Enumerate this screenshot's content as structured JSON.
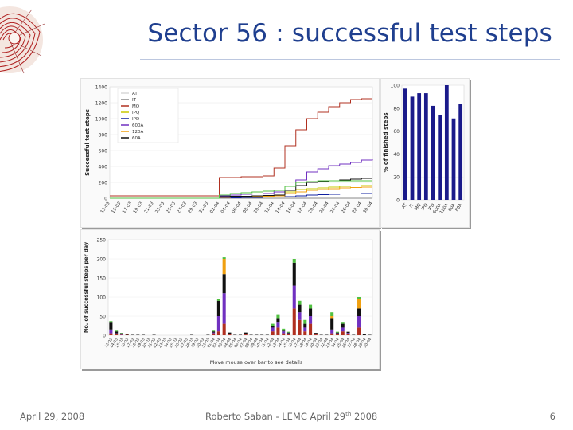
{
  "slide": {
    "title": "Sector 56 : successful test steps",
    "footer_date": "April 29, 2008",
    "footer_author_pre": "Roberto Saban - LEMC April 29",
    "footer_author_sup": "th",
    "footer_author_post": " 2008",
    "page_number": "6",
    "logo_icon": "cern-lhc-sector-logo-icon"
  },
  "chart_data": [
    {
      "type": "line",
      "ylabel": "Successful test steps",
      "ylim": [
        0,
        1400
      ],
      "yticks": [
        0,
        200,
        400,
        600,
        800,
        1000,
        1200,
        1400
      ],
      "categories": [
        "13-03",
        "15-03",
        "17-03",
        "19-03",
        "21-03",
        "23-03",
        "25-03",
        "27-03",
        "29-03",
        "31-03",
        "02-04",
        "04-04",
        "06-04",
        "08-04",
        "10-04",
        "12-04",
        "14-04",
        "16-04",
        "18-04",
        "20-04",
        "22-04",
        "24-04",
        "26-04",
        "28-04",
        "30-04"
      ],
      "legend": {
        "position": "top-left"
      },
      "series": [
        {
          "name": "AT",
          "color": "#d8d8d8",
          "values": [
            0,
            0,
            0,
            0,
            0,
            0,
            0,
            0,
            0,
            0,
            0,
            0,
            0,
            0,
            0,
            0,
            0,
            0,
            0,
            0,
            0,
            0,
            0,
            0,
            0
          ]
        },
        {
          "name": "IT",
          "color": "#888888",
          "values": [
            0,
            0,
            0,
            0,
            0,
            0,
            0,
            0,
            0,
            0,
            0,
            0,
            0,
            0,
            0,
            0,
            0,
            0,
            0,
            0,
            0,
            0,
            0,
            0,
            0
          ]
        },
        {
          "name": "MQ",
          "color": "#b03020",
          "values": [
            30,
            30,
            30,
            30,
            30,
            30,
            30,
            30,
            30,
            30,
            260,
            260,
            270,
            270,
            280,
            380,
            660,
            860,
            1000,
            1080,
            1150,
            1200,
            1240,
            1250,
            1250
          ]
        },
        {
          "name": "IPQ",
          "color": "#c8c800",
          "values": [
            0,
            0,
            0,
            0,
            0,
            0,
            0,
            0,
            0,
            0,
            10,
            15,
            20,
            20,
            25,
            30,
            80,
            110,
            120,
            130,
            140,
            150,
            155,
            160,
            160
          ]
        },
        {
          "name": "IPD",
          "color": "#1020a0",
          "values": [
            0,
            0,
            0,
            0,
            0,
            0,
            0,
            0,
            0,
            0,
            5,
            5,
            10,
            10,
            15,
            15,
            20,
            30,
            40,
            45,
            50,
            55,
            55,
            60,
            60
          ]
        },
        {
          "name": "600A",
          "color": "#7030c0",
          "values": [
            0,
            0,
            0,
            0,
            0,
            0,
            0,
            0,
            0,
            0,
            30,
            40,
            50,
            55,
            60,
            80,
            150,
            230,
            330,
            370,
            410,
            430,
            450,
            480,
            490
          ]
        },
        {
          "name": "120A",
          "color": "#f0a010",
          "values": [
            0,
            0,
            0,
            0,
            0,
            0,
            0,
            0,
            0,
            0,
            10,
            15,
            15,
            20,
            25,
            30,
            60,
            80,
            100,
            110,
            120,
            130,
            135,
            140,
            140
          ]
        },
        {
          "name": "60A",
          "color": "#101010",
          "values": [
            0,
            0,
            0,
            0,
            0,
            0,
            0,
            0,
            0,
            0,
            20,
            25,
            25,
            30,
            35,
            40,
            100,
            160,
            200,
            210,
            220,
            230,
            240,
            250,
            250
          ]
        },
        {
          "name": "",
          "color": "#50c040",
          "values": [
            0,
            0,
            0,
            0,
            0,
            0,
            0,
            0,
            0,
            0,
            40,
            60,
            70,
            80,
            90,
            100,
            150,
            200,
            210,
            220,
            220,
            220,
            220,
            220,
            220
          ]
        }
      ]
    },
    {
      "type": "bar",
      "ylabel": "% of finished steps",
      "ylim": [
        0,
        100
      ],
      "yticks": [
        0,
        20,
        40,
        60,
        80,
        100
      ],
      "categories": [
        "AT",
        "IT",
        "MQ",
        "IPQ",
        "IPD",
        "600A",
        "120A",
        "60A",
        "80A"
      ],
      "values": [
        97,
        90,
        93,
        93,
        82,
        74,
        100,
        71,
        84
      ],
      "color": "#1a1a8a"
    },
    {
      "type": "bar",
      "ylabel": "No. of successful steps per day",
      "xlabel": "Move mouse over bar to see details",
      "ylim": [
        0,
        250
      ],
      "yticks": [
        0,
        50,
        100,
        150,
        200,
        250
      ],
      "categories": [
        "13-03",
        "14-03",
        "15-03",
        "16-03",
        "17-03",
        "18-03",
        "19-03",
        "20-03",
        "21-03",
        "22-03",
        "23-03",
        "24-03",
        "25-03",
        "26-03",
        "27-03",
        "28-03",
        "29-03",
        "30-03",
        "31-03",
        "01-04",
        "02-04",
        "03-04",
        "04-04",
        "05-04",
        "06-04",
        "07-04",
        "08-04",
        "09-04",
        "10-04",
        "11-04",
        "12-04",
        "13-04",
        "14-04",
        "15-04",
        "16-04",
        "17-04",
        "18-04",
        "19-04",
        "20-04",
        "21-04",
        "22-04",
        "23-04",
        "24-04",
        "25-04",
        "26-04",
        "27-04",
        "28-04",
        "29-04",
        "30-04"
      ],
      "series": [
        {
          "name": "MQ",
          "color": "#b03020",
          "values": [
            5,
            3,
            1,
            1,
            0,
            0,
            0,
            0,
            0,
            0,
            0,
            0,
            0,
            0,
            0,
            0,
            0,
            0,
            0,
            5,
            10,
            30,
            2,
            0,
            0,
            2,
            0,
            0,
            0,
            0,
            10,
            20,
            5,
            3,
            70,
            40,
            10,
            30,
            2,
            0,
            0,
            5,
            3,
            10,
            3,
            0,
            20,
            0,
            0
          ]
        },
        {
          "name": "600A",
          "color": "#7030c0",
          "values": [
            10,
            2,
            1,
            0,
            0,
            0,
            0,
            0,
            0,
            0,
            0,
            0,
            0,
            0,
            0,
            0,
            0,
            0,
            0,
            2,
            40,
            80,
            2,
            0,
            0,
            2,
            0,
            0,
            0,
            0,
            10,
            15,
            5,
            2,
            60,
            20,
            10,
            20,
            2,
            0,
            0,
            10,
            2,
            10,
            3,
            0,
            30,
            0,
            0
          ]
        },
        {
          "name": "60A",
          "color": "#101010",
          "values": [
            20,
            5,
            3,
            1,
            1,
            1,
            1,
            0,
            1,
            0,
            0,
            0,
            0,
            0,
            0,
            1,
            0,
            0,
            1,
            3,
            40,
            50,
            3,
            1,
            1,
            3,
            1,
            1,
            1,
            1,
            5,
            10,
            2,
            2,
            60,
            20,
            10,
            20,
            2,
            1,
            1,
            30,
            2,
            10,
            3,
            1,
            20,
            2,
            1
          ]
        },
        {
          "name": "120A",
          "color": "#f0a010",
          "values": [
            0,
            0,
            0,
            0,
            0,
            0,
            0,
            0,
            0,
            0,
            0,
            0,
            0,
            0,
            0,
            0,
            0,
            0,
            0,
            0,
            0,
            40,
            0,
            0,
            0,
            0,
            0,
            0,
            0,
            0,
            0,
            0,
            0,
            0,
            0,
            0,
            0,
            0,
            0,
            0,
            0,
            5,
            0,
            0,
            0,
            0,
            25,
            0,
            0
          ]
        },
        {
          "name": "",
          "color": "#50c040",
          "values": [
            2,
            2,
            1,
            0,
            0,
            0,
            0,
            0,
            0,
            0,
            0,
            0,
            0,
            0,
            0,
            0,
            0,
            0,
            0,
            2,
            4,
            4,
            0,
            0,
            0,
            0,
            0,
            0,
            0,
            0,
            5,
            10,
            5,
            2,
            10,
            10,
            10,
            10,
            0,
            0,
            0,
            10,
            2,
            5,
            0,
            0,
            5,
            0,
            0
          ]
        }
      ]
    }
  ]
}
